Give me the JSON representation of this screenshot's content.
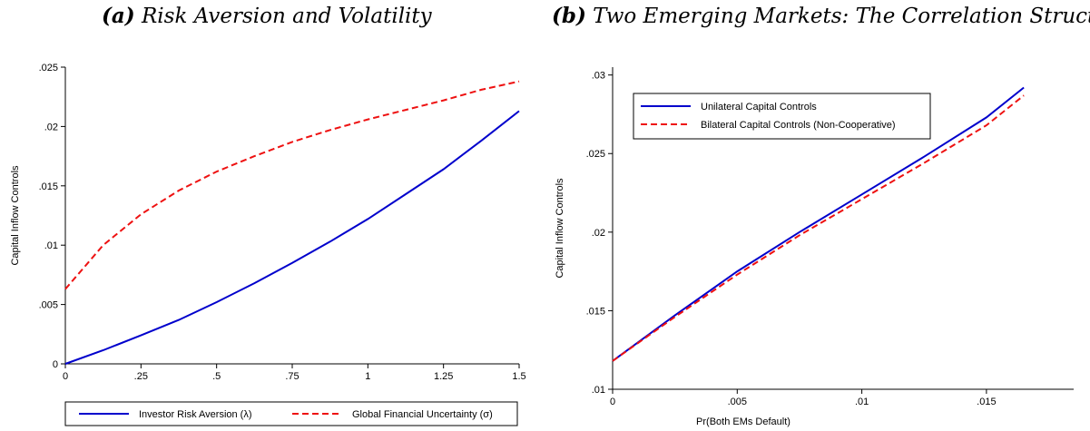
{
  "chart_data": [
    {
      "type": "line",
      "panel_letter": "(a)",
      "title": "Risk Aversion and Volatility",
      "xlabel": "",
      "ylabel": "Capital Inflow Controls",
      "xlim": [
        0,
        1.5
      ],
      "ylim": [
        0,
        0.025
      ],
      "xticks": [
        {
          "v": 0,
          "label": "0"
        },
        {
          "v": 0.25,
          "label": ".25"
        },
        {
          "v": 0.5,
          "label": ".5"
        },
        {
          "v": 0.75,
          "label": ".75"
        },
        {
          "v": 1,
          "label": "1"
        },
        {
          "v": 1.25,
          "label": "1.25"
        },
        {
          "v": 1.5,
          "label": "1.5"
        }
      ],
      "yticks": [
        {
          "v": 0,
          "label": "0"
        },
        {
          "v": 0.005,
          "label": ".005"
        },
        {
          "v": 0.01,
          "label": ".01"
        },
        {
          "v": 0.015,
          "label": ".015"
        },
        {
          "v": 0.02,
          "label": ".02"
        },
        {
          "v": 0.025,
          "label": ".025"
        }
      ],
      "grid": false,
      "legend_position": "bottom",
      "series": [
        {
          "name": "Investor Risk Aversion (λ)",
          "color": "#0000cc",
          "dash": "solid",
          "x": [
            0,
            0.125,
            0.25,
            0.375,
            0.5,
            0.625,
            0.75,
            0.875,
            1.0,
            1.125,
            1.25,
            1.375,
            1.5
          ],
          "y": [
            0,
            0.00115,
            0.0024,
            0.0037,
            0.0052,
            0.0068,
            0.0085,
            0.0103,
            0.0122,
            0.0143,
            0.0164,
            0.0188,
            0.0213
          ]
        },
        {
          "name": "Global Financial Uncertainty (σ)",
          "color": "#ee1111",
          "dash": "dashed",
          "x": [
            0,
            0.125,
            0.25,
            0.375,
            0.5,
            0.625,
            0.75,
            0.875,
            1.0,
            1.125,
            1.25,
            1.375,
            1.5
          ],
          "y": [
            0.0063,
            0.01,
            0.0126,
            0.0146,
            0.0162,
            0.0175,
            0.0187,
            0.0197,
            0.0206,
            0.0214,
            0.0222,
            0.0231,
            0.0238
          ]
        }
      ]
    },
    {
      "type": "line",
      "panel_letter": "(b)",
      "title": "Two Emerging Markets: The Correlation Structure",
      "xlabel": "Pr(Both EMs Default)",
      "ylabel": "Capital Inflow Controls",
      "xlim": [
        0,
        0.0185
      ],
      "ylim": [
        0.01,
        0.0305
      ],
      "xticks": [
        {
          "v": 0,
          "label": "0"
        },
        {
          "v": 0.005,
          "label": ".005"
        },
        {
          "v": 0.01,
          "label": ".01"
        },
        {
          "v": 0.015,
          "label": ".015"
        }
      ],
      "yticks": [
        {
          "v": 0.01,
          "label": ".01"
        },
        {
          "v": 0.015,
          "label": ".015"
        },
        {
          "v": 0.02,
          "label": ".02"
        },
        {
          "v": 0.025,
          "label": ".025"
        },
        {
          "v": 0.03,
          "label": ".03"
        }
      ],
      "grid": false,
      "legend_position": "top-left",
      "series": [
        {
          "name": "Unilateral Capital Controls",
          "color": "#0000cc",
          "dash": "solid",
          "x": [
            0,
            0.0025,
            0.005,
            0.0075,
            0.01,
            0.0125,
            0.015,
            0.0165
          ],
          "y": [
            0.0118,
            0.0147,
            0.0175,
            0.02,
            0.0224,
            0.0248,
            0.0273,
            0.0292
          ]
        },
        {
          "name": "Bilateral Capital Controls (Non-Cooperative)",
          "color": "#ee1111",
          "dash": "dashed",
          "x": [
            0,
            0.0025,
            0.005,
            0.0075,
            0.01,
            0.0125,
            0.015,
            0.0165
          ],
          "y": [
            0.0118,
            0.0146,
            0.0173,
            0.0198,
            0.0221,
            0.0244,
            0.0268,
            0.0287
          ]
        }
      ]
    }
  ]
}
